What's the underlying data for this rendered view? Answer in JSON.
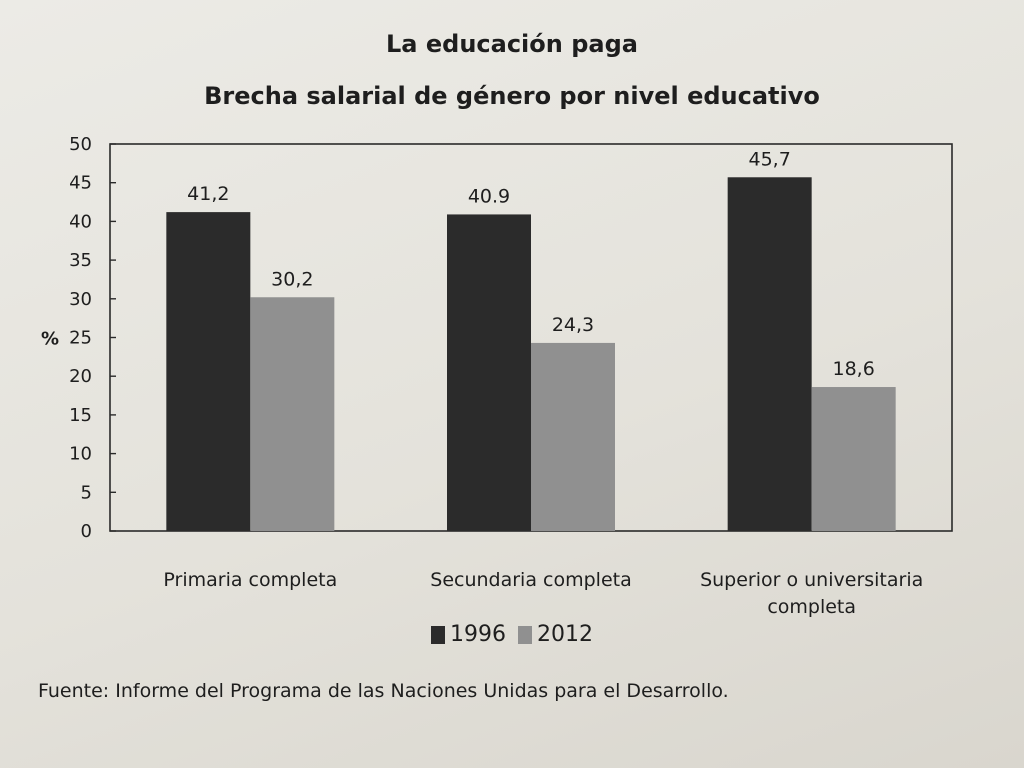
{
  "chart_data": {
    "type": "bar",
    "title": "La educación paga",
    "subtitle": "Brecha salarial de género por nivel educativo",
    "ylabel": "%",
    "xlabel": "",
    "ylim": [
      0,
      50
    ],
    "yticks": [
      0,
      5,
      10,
      15,
      20,
      25,
      30,
      35,
      40,
      45,
      50
    ],
    "categories": [
      [
        "Primaria completa"
      ],
      [
        "Secundaria completa"
      ],
      [
        "Superior o universitaria",
        "completa"
      ]
    ],
    "series": [
      {
        "name": "1996",
        "color": "#2b2b2b",
        "values": [
          41.2,
          40.9,
          45.7
        ],
        "labels": [
          "41,2",
          "40.9",
          "45,7"
        ]
      },
      {
        "name": "2012",
        "color": "#909090",
        "values": [
          30.2,
          24.3,
          18.6
        ],
        "labels": [
          "30,2",
          "24,3",
          "18,6"
        ]
      }
    ],
    "legend_position": "bottom",
    "grid": false
  },
  "source": "Fuente: Informe del Programa de las Naciones Unidas para el Desarrollo."
}
